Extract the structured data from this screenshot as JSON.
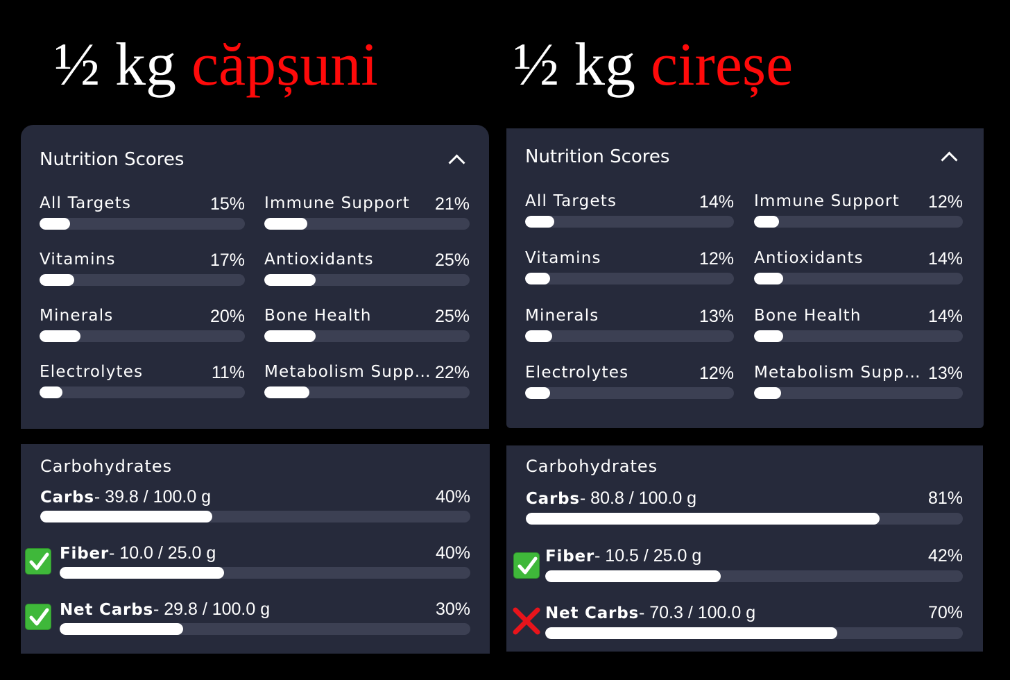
{
  "columns": [
    {
      "heading": {
        "prefix": "½ kg ",
        "fruit": "căpșuni"
      },
      "nutrition": {
        "title": "Nutrition Scores",
        "icon": "chevron-up-icon",
        "scores": [
          {
            "label": "All Targets",
            "pct": "15%",
            "value": 15
          },
          {
            "label": "Immune Support",
            "pct": "21%",
            "value": 21
          },
          {
            "label": "Vitamins",
            "pct": "17%",
            "value": 17
          },
          {
            "label": "Antioxidants",
            "pct": "25%",
            "value": 25
          },
          {
            "label": "Minerals",
            "pct": "20%",
            "value": 20
          },
          {
            "label": "Bone Health",
            "pct": "25%",
            "value": 25
          },
          {
            "label": "Electrolytes",
            "pct": "11%",
            "value": 11
          },
          {
            "label": "Metabolism Supp...",
            "pct": "22%",
            "value": 22
          }
        ]
      },
      "carbs": {
        "title": "Carbohydrates",
        "rows": [
          {
            "name": "Carbs",
            "amount": "- 39.8 / 100.0 g",
            "pct": "40%",
            "value": 40,
            "icon": ""
          },
          {
            "name": "Fiber",
            "amount": "- 10.0 / 25.0 g",
            "pct": "40%",
            "value": 40,
            "icon": "check-mark-icon"
          },
          {
            "name": "Net Carbs",
            "amount": "- 29.8 / 100.0 g",
            "pct": "30%",
            "value": 30,
            "icon": "check-mark-icon"
          }
        ]
      }
    },
    {
      "heading": {
        "prefix": "½ kg ",
        "fruit": "cireșe"
      },
      "nutrition": {
        "title": "Nutrition Scores",
        "icon": "chevron-up-icon",
        "scores": [
          {
            "label": "All Targets",
            "pct": "14%",
            "value": 14
          },
          {
            "label": "Immune Support",
            "pct": "12%",
            "value": 12
          },
          {
            "label": "Vitamins",
            "pct": "12%",
            "value": 12
          },
          {
            "label": "Antioxidants",
            "pct": "14%",
            "value": 14
          },
          {
            "label": "Minerals",
            "pct": "13%",
            "value": 13
          },
          {
            "label": "Bone Health",
            "pct": "14%",
            "value": 14
          },
          {
            "label": "Electrolytes",
            "pct": "12%",
            "value": 12
          },
          {
            "label": "Metabolism Suppo...",
            "pct": "13%",
            "value": 13
          }
        ]
      },
      "carbs": {
        "title": "Carbohydrates",
        "rows": [
          {
            "name": "Carbs",
            "amount": "- 80.8 / 100.0 g",
            "pct": "81%",
            "value": 81,
            "icon": ""
          },
          {
            "name": "Fiber",
            "amount": "- 10.5 / 25.0 g",
            "pct": "42%",
            "value": 42,
            "icon": "check-mark-icon"
          },
          {
            "name": "Net Carbs",
            "amount": "- 70.3 / 100.0 g",
            "pct": "70%",
            "value": 70,
            "icon": "cross-mark-icon"
          }
        ]
      }
    }
  ],
  "colors": {
    "background": "#000000",
    "panel": "#262a3b",
    "track": "#3c4053",
    "fill": "#ffffff",
    "fruit_text": "#ff0a0a",
    "check": "#3fb83a",
    "cross": "#e8141b"
  }
}
